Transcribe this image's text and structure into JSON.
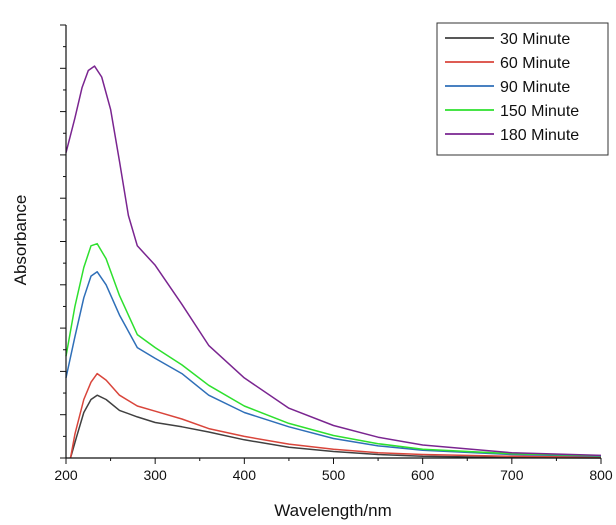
{
  "chart_data": {
    "type": "line",
    "title": "",
    "xlabel": "Wavelength/nm",
    "ylabel": "Absorbance",
    "xlim": [
      200,
      800
    ],
    "ylim": [
      0,
      10
    ],
    "x_ticks": [
      200,
      300,
      400,
      500,
      600,
      700,
      800
    ],
    "y_tick_labels_shown": false,
    "grid": false,
    "legend_position": "top-right",
    "series": [
      {
        "name": "30 Minute",
        "color": "#404040",
        "points": [
          [
            205,
            0
          ],
          [
            212,
            0.5
          ],
          [
            220,
            1.05
          ],
          [
            228,
            1.35
          ],
          [
            235,
            1.45
          ],
          [
            245,
            1.35
          ],
          [
            260,
            1.1
          ],
          [
            280,
            0.95
          ],
          [
            300,
            0.82
          ],
          [
            330,
            0.72
          ],
          [
            360,
            0.6
          ],
          [
            400,
            0.42
          ],
          [
            450,
            0.25
          ],
          [
            500,
            0.15
          ],
          [
            550,
            0.08
          ],
          [
            600,
            0.04
          ],
          [
            700,
            0.01
          ],
          [
            800,
            0.0
          ]
        ]
      },
      {
        "name": "60 Minute",
        "color": "#d9453b",
        "points": [
          [
            205,
            0
          ],
          [
            210,
            0.55
          ],
          [
            220,
            1.35
          ],
          [
            228,
            1.75
          ],
          [
            235,
            1.95
          ],
          [
            245,
            1.8
          ],
          [
            260,
            1.45
          ],
          [
            280,
            1.2
          ],
          [
            300,
            1.08
          ],
          [
            330,
            0.9
          ],
          [
            360,
            0.68
          ],
          [
            400,
            0.5
          ],
          [
            450,
            0.32
          ],
          [
            500,
            0.2
          ],
          [
            550,
            0.12
          ],
          [
            600,
            0.08
          ],
          [
            700,
            0.04
          ],
          [
            800,
            0.02
          ]
        ]
      },
      {
        "name": "90 Minute",
        "color": "#2f6fb8",
        "points": [
          [
            200,
            1.85
          ],
          [
            210,
            2.8
          ],
          [
            220,
            3.7
          ],
          [
            228,
            4.2
          ],
          [
            235,
            4.3
          ],
          [
            245,
            4.0
          ],
          [
            260,
            3.3
          ],
          [
            280,
            2.55
          ],
          [
            300,
            2.3
          ],
          [
            330,
            1.95
          ],
          [
            360,
            1.45
          ],
          [
            400,
            1.05
          ],
          [
            450,
            0.72
          ],
          [
            500,
            0.45
          ],
          [
            550,
            0.28
          ],
          [
            600,
            0.18
          ],
          [
            700,
            0.08
          ],
          [
            800,
            0.04
          ]
        ]
      },
      {
        "name": "150 Minute",
        "color": "#2ee02e",
        "points": [
          [
            200,
            2.35
          ],
          [
            210,
            3.5
          ],
          [
            220,
            4.4
          ],
          [
            228,
            4.9
          ],
          [
            235,
            4.95
          ],
          [
            245,
            4.6
          ],
          [
            260,
            3.75
          ],
          [
            280,
            2.85
          ],
          [
            300,
            2.55
          ],
          [
            330,
            2.15
          ],
          [
            360,
            1.68
          ],
          [
            400,
            1.2
          ],
          [
            450,
            0.8
          ],
          [
            500,
            0.52
          ],
          [
            550,
            0.33
          ],
          [
            600,
            0.2
          ],
          [
            700,
            0.1
          ],
          [
            800,
            0.05
          ]
        ]
      },
      {
        "name": "180 Minute",
        "color": "#7a2590",
        "points": [
          [
            200,
            7.05
          ],
          [
            210,
            7.85
          ],
          [
            218,
            8.55
          ],
          [
            225,
            8.95
          ],
          [
            232,
            9.05
          ],
          [
            240,
            8.8
          ],
          [
            250,
            8.05
          ],
          [
            260,
            6.85
          ],
          [
            270,
            5.6
          ],
          [
            280,
            4.9
          ],
          [
            300,
            4.45
          ],
          [
            330,
            3.55
          ],
          [
            360,
            2.6
          ],
          [
            400,
            1.85
          ],
          [
            450,
            1.15
          ],
          [
            500,
            0.75
          ],
          [
            550,
            0.48
          ],
          [
            600,
            0.3
          ],
          [
            700,
            0.12
          ],
          [
            800,
            0.06
          ]
        ]
      }
    ]
  }
}
